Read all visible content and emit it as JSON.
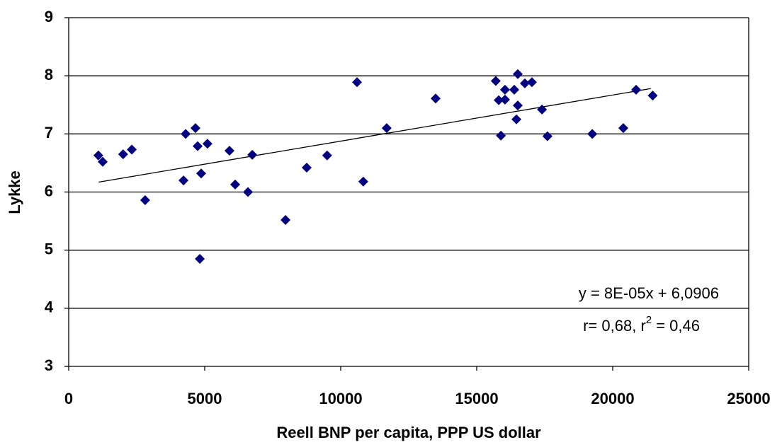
{
  "chart_data": {
    "type": "scatter",
    "x_label": "Reell BNP per capita, PPP US dollar",
    "y_label": "Lykke",
    "series": [
      {
        "color": "#000080",
        "x": [
          1090,
          1250,
          2000,
          2320,
          2810,
          4220,
          4300,
          4660,
          4740,
          4870,
          4820,
          5100,
          5910,
          6120,
          6590,
          6750,
          7970,
          8750,
          9500,
          10600,
          10830,
          11690,
          13490,
          15700,
          15810,
          15890,
          16040,
          16040,
          16380,
          16460,
          16510,
          16510,
          16770,
          17030,
          17400,
          17600,
          19250,
          20390,
          20860,
          21470
        ],
        "values": [
          6.63,
          6.52,
          6.65,
          6.73,
          5.86,
          6.2,
          7.0,
          7.1,
          6.79,
          6.32,
          4.85,
          6.83,
          6.71,
          6.13,
          6.0,
          6.64,
          5.52,
          6.42,
          6.63,
          7.89,
          6.18,
          7.1,
          7.61,
          7.91,
          7.58,
          6.97,
          7.59,
          7.76,
          7.76,
          7.25,
          7.49,
          8.03,
          7.87,
          7.89,
          7.42,
          6.96,
          7.0,
          7.1,
          7.76,
          7.66
        ]
      }
    ],
    "trendline": {
      "x": [
        1100,
        21400
      ],
      "values": [
        6.17,
        7.78
      ],
      "color": "#000000"
    },
    "annotations": [
      "y = 8E-05x + 6,0906",
      [
        "r= 0,68, r",
        "2",
        " = 0,46"
      ]
    ],
    "xlim": [
      0,
      25000
    ],
    "xticks": [
      0,
      5000,
      10000,
      15000,
      20000,
      25000
    ],
    "ylim": [
      3,
      9
    ],
    "yticks": [
      3,
      4,
      5,
      6,
      7,
      8,
      9
    ],
    "grid": true
  }
}
